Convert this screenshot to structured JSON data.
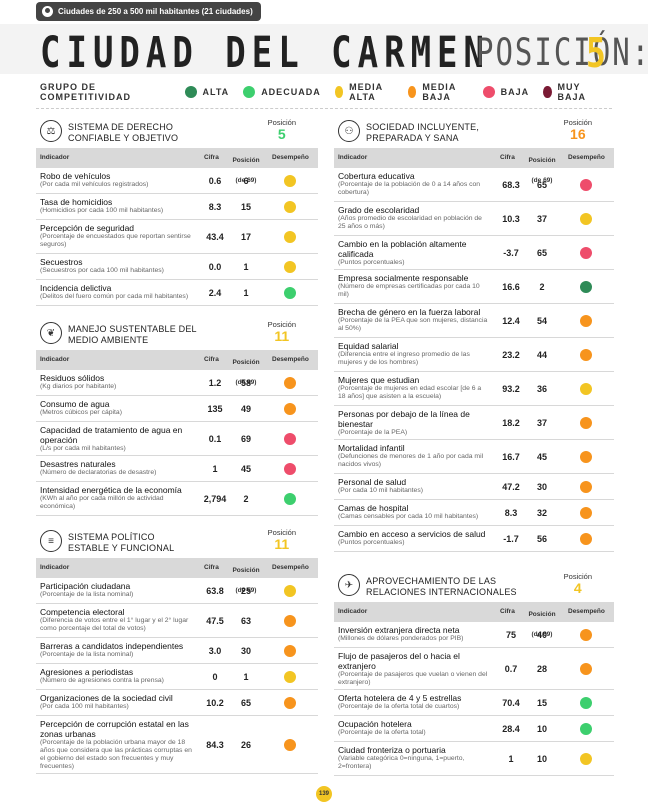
{
  "top_tab": "Ciudades de 250 a 500 mil habitantes (21 ciudades)",
  "city": "CIUDAD DEL CARMEN",
  "position_label": "POSICIÓN:",
  "position_value": "5",
  "legend": {
    "title": "GRUPO DE COMPETITIVIDAD",
    "items": [
      {
        "label": "ALTA",
        "color": "#2e8b57"
      },
      {
        "label": "ADECUADA",
        "color": "#3dcf6e"
      },
      {
        "label": "MEDIA ALTA",
        "color": "#f2c523"
      },
      {
        "label": "MEDIA BAJA",
        "color": "#f7941d"
      },
      {
        "label": "BAJA",
        "color": "#ee4d6b"
      },
      {
        "label": "MUY BAJA",
        "color": "#7a1a34"
      }
    ]
  },
  "headers": {
    "indicador": "Indicador",
    "cifra": "Cifra",
    "posicion": "Posición",
    "posicion_sub": "(de 69)",
    "desempeno": "Desempeño"
  },
  "page_number": "139",
  "sections": {
    "derecho": {
      "title1": "SISTEMA DE DERECHO",
      "title2": "CONFIABLE Y OBJETIVO",
      "pos_label": "Posición",
      "pos": "5",
      "pos_color": "#3dcf6e",
      "icon": "scales-icon",
      "rows": [
        {
          "name": "Robo de vehículos",
          "desc": "(Por cada mil vehículos registrados)",
          "value": "0.6",
          "rank": "6",
          "color": "#f2c523"
        },
        {
          "name": "Tasa de homicidios",
          "desc": "(Homicidios por cada 100 mil habitantes)",
          "value": "8.3",
          "rank": "15",
          "color": "#f2c523"
        },
        {
          "name": "Percepción de seguridad",
          "desc": "(Porcentaje de encuestados que reportan sentirse seguros)",
          "value": "43.4",
          "rank": "17",
          "color": "#f2c523"
        },
        {
          "name": "Secuestros",
          "desc": "(Secuestros por cada 100 mil habitantes)",
          "value": "0.0",
          "rank": "1",
          "color": "#f2c523"
        },
        {
          "name": "Incidencia delictiva",
          "desc": "(Delitos del fuero común por cada mil habitantes)",
          "value": "2.4",
          "rank": "1",
          "color": "#3dcf6e"
        }
      ]
    },
    "ambiente": {
      "title1": "MANEJO SUSTENTABLE DEL",
      "title2": "MEDIO AMBIENTE",
      "pos_label": "Posición",
      "pos": "11",
      "pos_color": "#f2c523",
      "icon": "leaf-icon",
      "rows": [
        {
          "name": "Residuos sólidos",
          "desc": "(Kg diarios por habitante)",
          "value": "1.2",
          "rank": "58",
          "color": "#f7941d"
        },
        {
          "name": "Consumo de agua",
          "desc": "(Metros cúbicos per cápita)",
          "value": "135",
          "rank": "49",
          "color": "#f7941d"
        },
        {
          "name": "Capacidad de tratamiento de agua en operación",
          "desc": "(L/s por cada mil habitantes)",
          "value": "0.1",
          "rank": "69",
          "color": "#ee4d6b"
        },
        {
          "name": "Desastres naturales",
          "desc": "(Número de declaratorias de desastre)",
          "value": "1",
          "rank": "45",
          "color": "#ee4d6b"
        },
        {
          "name": "Intensidad energética de la economía",
          "desc": "(KWh al año por cada millón de actividad económica)",
          "value": "2,794",
          "rank": "2",
          "color": "#3dcf6e"
        }
      ]
    },
    "politico": {
      "title1": "SISTEMA POLÍTICO",
      "title2": "ESTABLE Y FUNCIONAL",
      "pos_label": "Posición",
      "pos": "11",
      "pos_color": "#f2c523",
      "icon": "document-icon",
      "rows": [
        {
          "name": "Participación ciudadana",
          "desc": "(Porcentaje de la lista nominal)",
          "value": "63.8",
          "rank": "25",
          "color": "#f2c523"
        },
        {
          "name": "Competencia electoral",
          "desc": "(Diferencia de votos entre el 1° lugar y el 2° lugar como porcentaje del total de votos)",
          "value": "47.5",
          "rank": "63",
          "color": "#f7941d"
        },
        {
          "name": "Barreras a candidatos independientes",
          "desc": "(Porcentaje de la lista nominal)",
          "value": "3.0",
          "rank": "30",
          "color": "#f7941d"
        },
        {
          "name": "Agresiones a periodistas",
          "desc": "(Número de agresiones contra la prensa)",
          "value": "0",
          "rank": "1",
          "color": "#f2c523"
        },
        {
          "name": "Organizaciones de la sociedad civil",
          "desc": "(Por cada 100 mil habitantes)",
          "value": "10.2",
          "rank": "65",
          "color": "#f7941d"
        },
        {
          "name": "Percepción de corrupción estatal en las zonas urbanas",
          "desc": "(Porcentaje de la población urbana mayor de 18 años que considera que las prácticas corruptas en el gobierno del estado son frecuentes y muy frecuentes)",
          "value": "84.3",
          "rank": "26",
          "color": "#f7941d"
        }
      ]
    },
    "sociedad": {
      "title1": "SOCIEDAD INCLUYENTE,",
      "title2": "PREPARADA Y SANA",
      "pos_label": "Posición",
      "pos": "16",
      "pos_color": "#f7941d",
      "icon": "people-icon",
      "rows": [
        {
          "name": "Cobertura educativa",
          "desc": "(Porcentaje de la población de 0 a 14 años con cobertura)",
          "value": "68.3",
          "rank": "65",
          "color": "#ee4d6b"
        },
        {
          "name": "Grado de escolaridad",
          "desc": "(Años promedio de escolaridad en población de 25 años o más)",
          "value": "10.3",
          "rank": "37",
          "color": "#f2c523"
        },
        {
          "name": "Cambio en la población altamente calificada",
          "desc": "(Puntos porcentuales)",
          "value": "-3.7",
          "rank": "65",
          "color": "#ee4d6b"
        },
        {
          "name": "Empresa socialmente responsable",
          "desc": "(Número de empresas certificadas por cada 10 mil)",
          "value": "16.6",
          "rank": "2",
          "color": "#2e8b57"
        },
        {
          "name": "Brecha de género en la fuerza laboral",
          "desc": "(Porcentaje de la PEA que son mujeres, distancia al 50%)",
          "value": "12.4",
          "rank": "54",
          "color": "#f7941d"
        },
        {
          "name": "Equidad salarial",
          "desc": "(Diferencia entre el ingreso promedio de las mujeres y de los hombres)",
          "value": "23.2",
          "rank": "44",
          "color": "#f7941d"
        },
        {
          "name": "Mujeres que estudian",
          "desc": "(Porcentaje de mujeres en edad escolar [de 6 a 18 años] que asisten a la escuela)",
          "value": "93.2",
          "rank": "36",
          "color": "#f2c523"
        },
        {
          "name": "Personas por debajo de la línea de bienestar",
          "desc": "(Porcentaje de la PEA)",
          "value": "18.2",
          "rank": "37",
          "color": "#f7941d"
        },
        {
          "name": "Mortalidad infantil",
          "desc": "(Defunciones de menores de 1 año por cada mil nacidos vivos)",
          "value": "16.7",
          "rank": "45",
          "color": "#f7941d"
        },
        {
          "name": "Personal de salud",
          "desc": "(Por cada 10 mil habitantes)",
          "value": "47.2",
          "rank": "30",
          "color": "#f7941d"
        },
        {
          "name": "Camas de hospital",
          "desc": "(Camas censables por cada 10 mil habitantes)",
          "value": "8.3",
          "rank": "32",
          "color": "#f7941d"
        },
        {
          "name": "Cambio en acceso a servicios de salud",
          "desc": "(Puntos porcentuales)",
          "value": "-1.7",
          "rank": "56",
          "color": "#f7941d"
        }
      ]
    },
    "internacional": {
      "title1": "APROVECHAMIENTO DE LAS",
      "title2": "RELACIONES INTERNACIONALES",
      "pos_label": "Posición",
      "pos": "4",
      "pos_color": "#f2c523",
      "icon": "plane-icon",
      "rows": [
        {
          "name": "Inversión extranjera directa neta",
          "desc": "(Millones de dólares ponderados por PIB)",
          "value": "75",
          "rank": "40",
          "color": "#f7941d"
        },
        {
          "name": "Flujo de pasajeros del o hacia el extranjero",
          "desc": "(Porcentaje de pasajeros que vuelan o vienen del extranjero)",
          "value": "0.7",
          "rank": "28",
          "color": "#f7941d"
        },
        {
          "name": "Oferta hotelera de 4 y 5 estrellas",
          "desc": "(Porcentaje de la oferta total de cuartos)",
          "value": "70.4",
          "rank": "15",
          "color": "#3dcf6e"
        },
        {
          "name": "Ocupación hotelera",
          "desc": "(Porcentaje de la oferta total)",
          "value": "28.4",
          "rank": "10",
          "color": "#3dcf6e"
        },
        {
          "name": "Ciudad fronteriza o portuaria",
          "desc": "(Variable categórica 0=ninguna, 1=puerto, 2=frontera)",
          "value": "1",
          "rank": "10",
          "color": "#f2c523"
        }
      ]
    }
  }
}
